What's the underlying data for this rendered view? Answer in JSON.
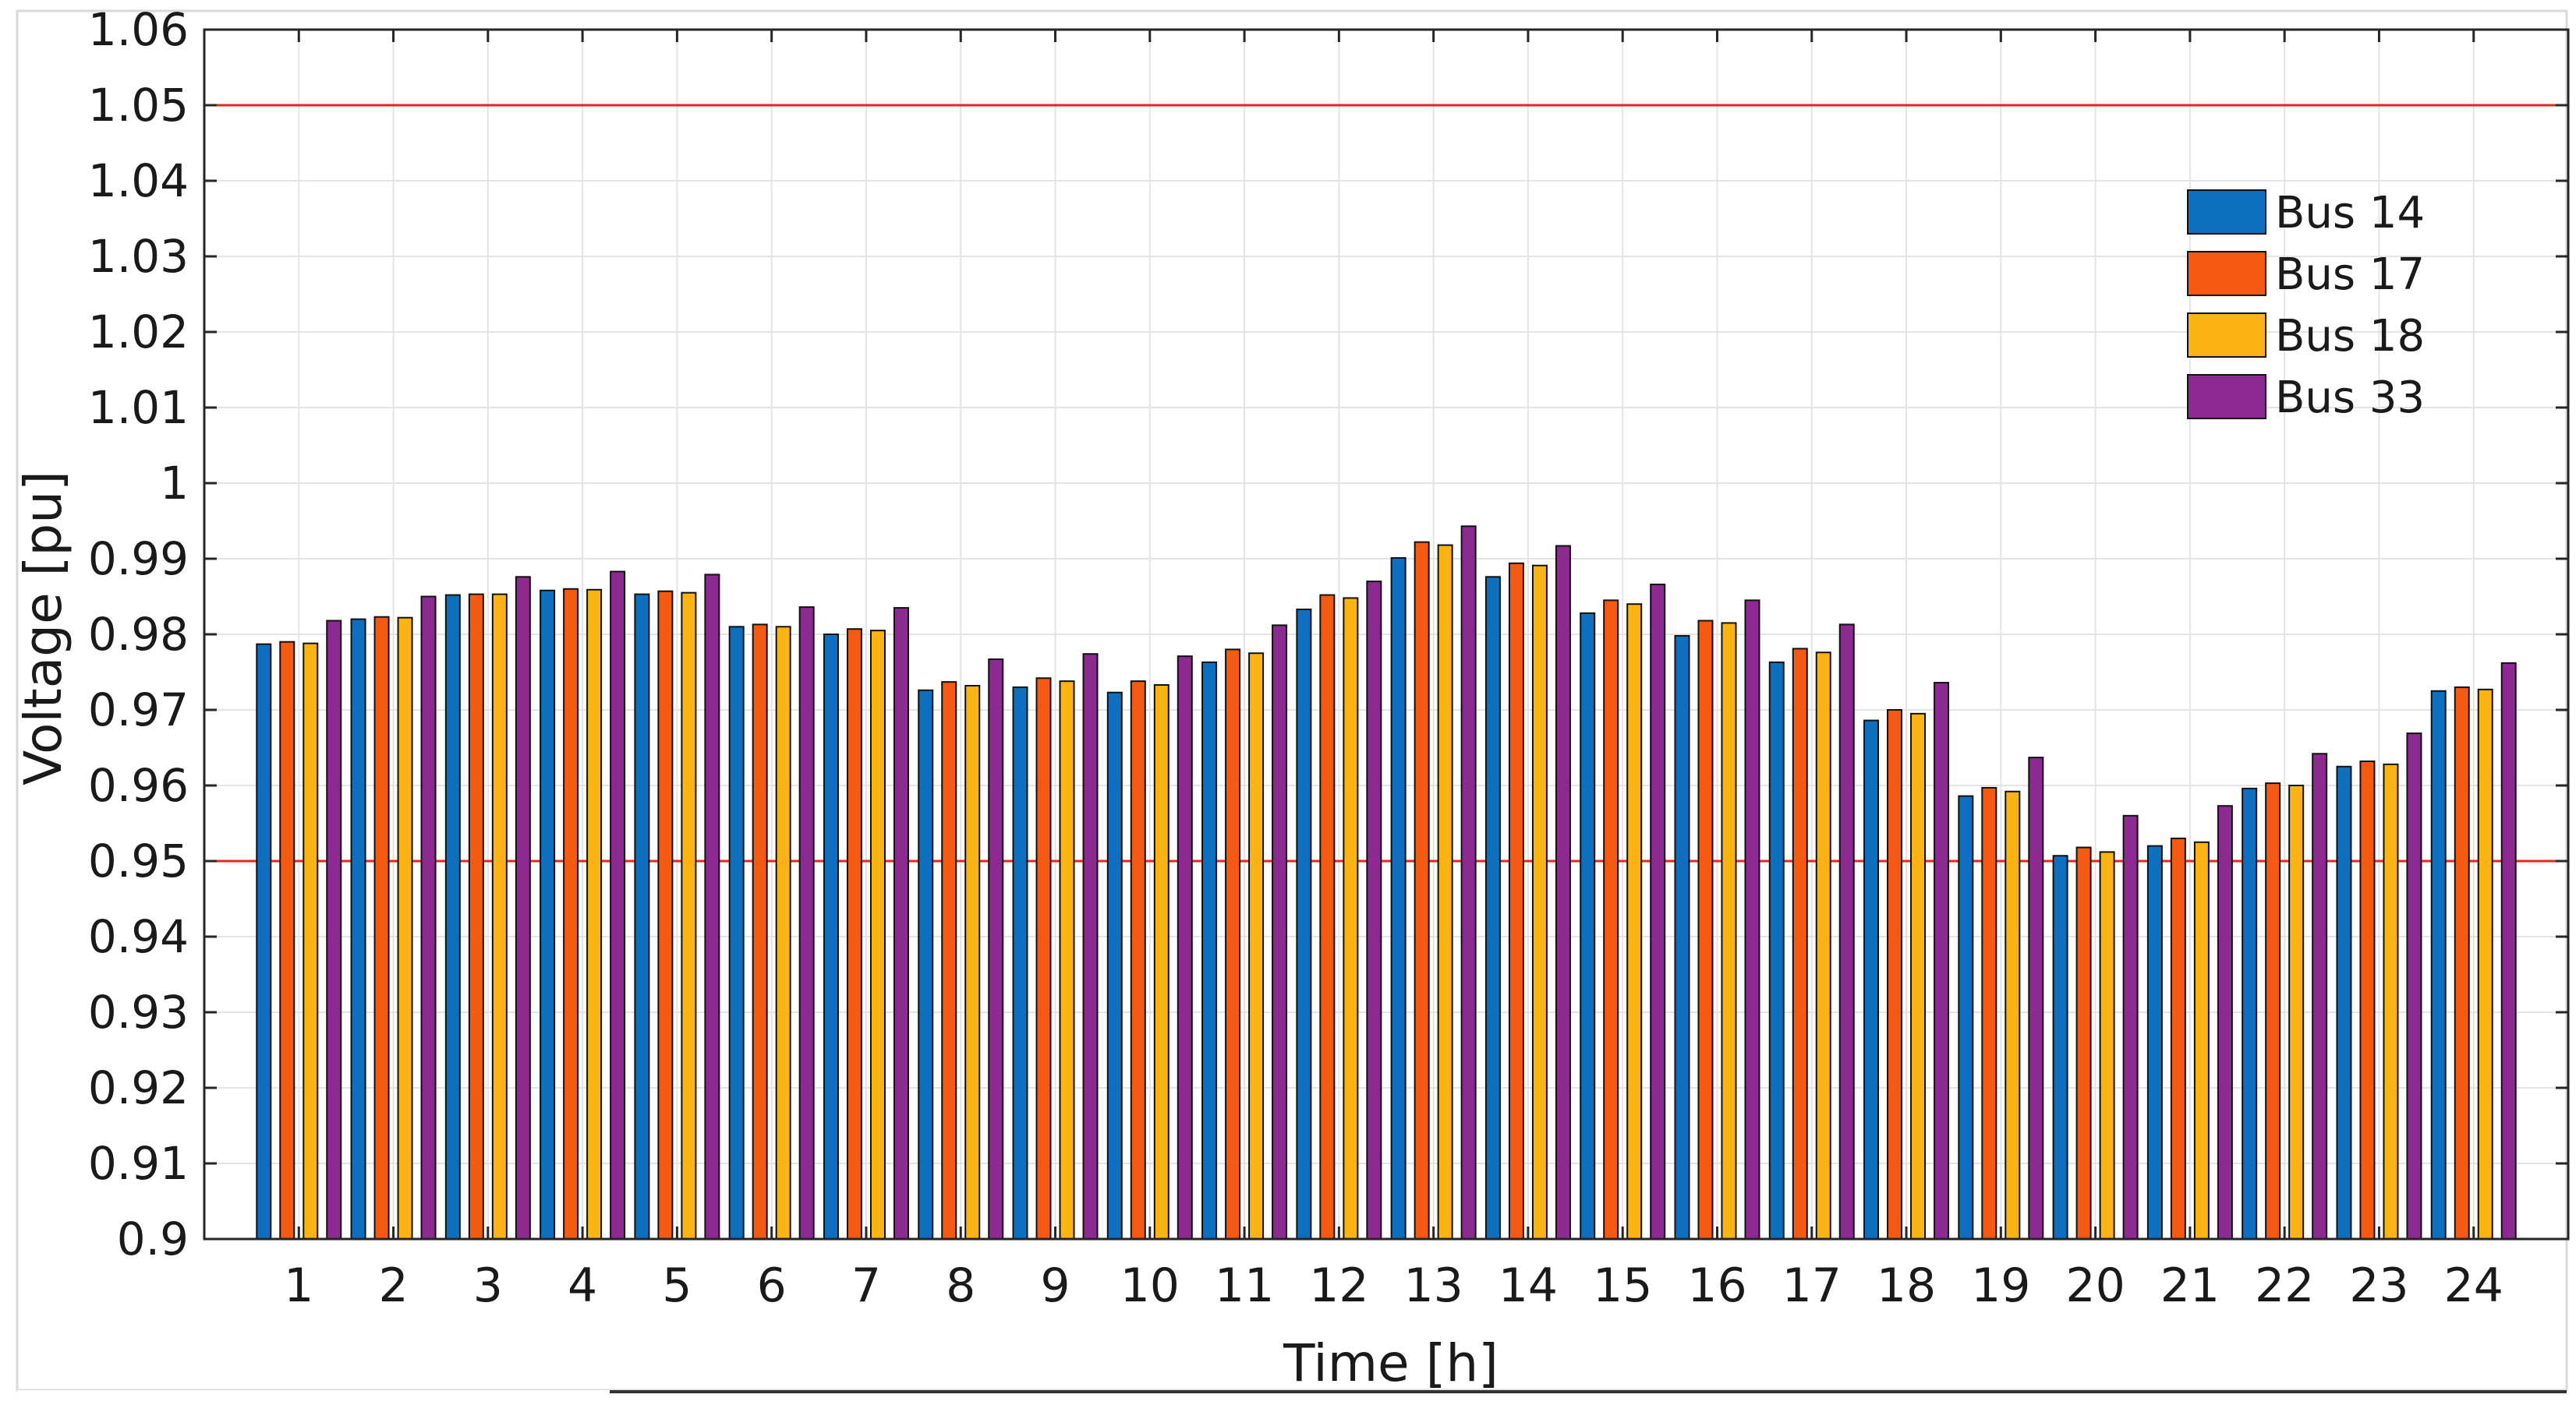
{
  "chart_data": {
    "type": "bar",
    "xlabel": "Time [h]",
    "ylabel": "Voltage [pu]",
    "ylim": [
      0.9,
      1.06
    ],
    "yticks": [
      0.9,
      0.91,
      0.92,
      0.93,
      0.94,
      0.95,
      0.96,
      0.97,
      0.98,
      0.99,
      1,
      1.01,
      1.02,
      1.03,
      1.04,
      1.05,
      1.06
    ],
    "ytick_labels": [
      "0.9",
      "0.91",
      "0.92",
      "0.93",
      "0.94",
      "0.95",
      "0.96",
      "0.97",
      "0.98",
      "0.99",
      "1",
      "1.01",
      "1.02",
      "1.03",
      "1.04",
      "1.05",
      "1.06"
    ],
    "categories": [
      "1",
      "2",
      "3",
      "4",
      "5",
      "6",
      "7",
      "8",
      "9",
      "10",
      "11",
      "12",
      "13",
      "14",
      "15",
      "16",
      "17",
      "18",
      "19",
      "20",
      "21",
      "22",
      "23",
      "24"
    ],
    "grid": true,
    "legend_position": "top-right",
    "reference_lines": [
      {
        "value": 1.05,
        "color": "#e8251b"
      },
      {
        "value": 0.95,
        "color": "#e8251b"
      }
    ],
    "series": [
      {
        "name": "Bus 14",
        "color": "#0f6fbf",
        "values": [
          0.9787,
          0.982,
          0.9852,
          0.9858,
          0.9853,
          0.981,
          0.98,
          0.9726,
          0.973,
          0.9723,
          0.9763,
          0.9833,
          0.9901,
          0.9876,
          0.9828,
          0.9798,
          0.9763,
          0.9686,
          0.9586,
          0.9507,
          0.952,
          0.9596,
          0.9625,
          0.9725
        ]
      },
      {
        "name": "Bus 17",
        "color": "#f45a12",
        "values": [
          0.979,
          0.9823,
          0.9853,
          0.986,
          0.9857,
          0.9813,
          0.9807,
          0.9737,
          0.9742,
          0.9738,
          0.978,
          0.9852,
          0.9922,
          0.9894,
          0.9845,
          0.9818,
          0.9781,
          0.97,
          0.9597,
          0.9518,
          0.953,
          0.9603,
          0.9632,
          0.973
        ]
      },
      {
        "name": "Bus 18",
        "color": "#fcb415",
        "values": [
          0.9788,
          0.9822,
          0.9853,
          0.9859,
          0.9855,
          0.981,
          0.9805,
          0.9732,
          0.9738,
          0.9733,
          0.9775,
          0.9848,
          0.9918,
          0.9891,
          0.984,
          0.9815,
          0.9776,
          0.9695,
          0.9592,
          0.9512,
          0.9525,
          0.96,
          0.9628,
          0.9727
        ]
      },
      {
        "name": "Bus 33",
        "color": "#8c2a92",
        "values": [
          0.9818,
          0.985,
          0.9876,
          0.9883,
          0.9879,
          0.9836,
          0.9835,
          0.9767,
          0.9774,
          0.9771,
          0.9812,
          0.987,
          0.9943,
          0.9917,
          0.9866,
          0.9845,
          0.9813,
          0.9736,
          0.9637,
          0.956,
          0.9573,
          0.9642,
          0.9669,
          0.9762
        ]
      }
    ]
  }
}
